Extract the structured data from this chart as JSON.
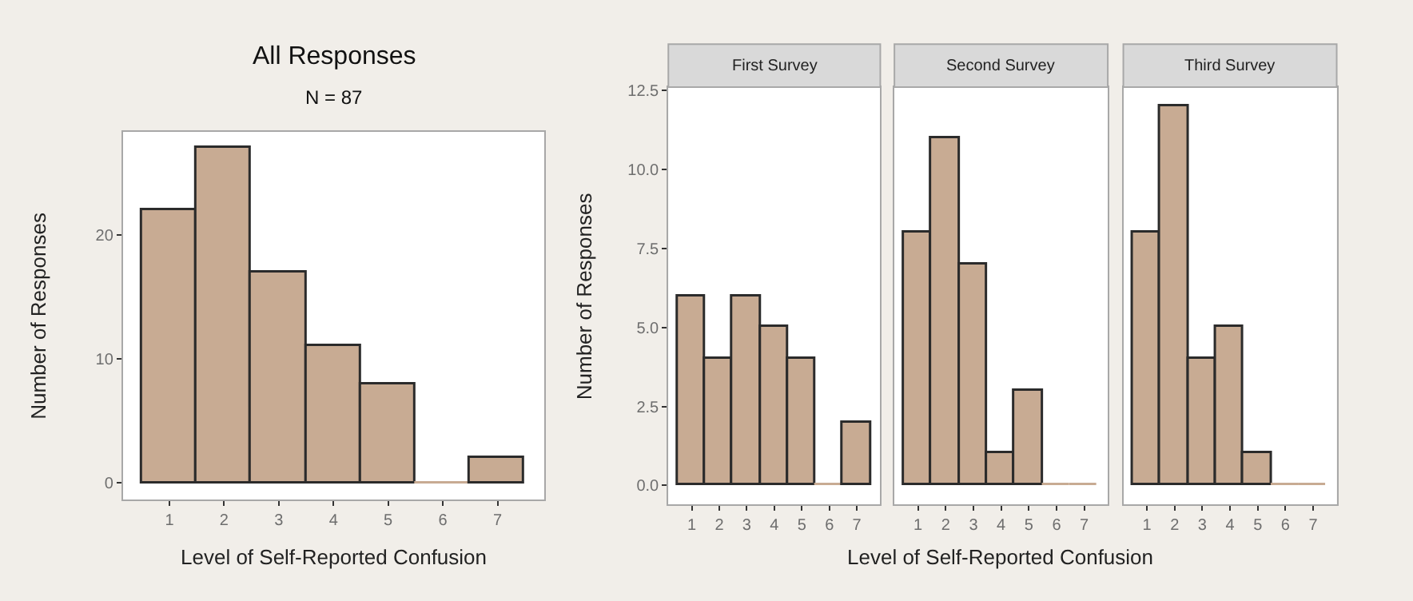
{
  "chart_data": [
    {
      "type": "histogram",
      "title": "All Responses",
      "subtitle": "N = 87",
      "xlabel": "Level of Self-Reported Confusion",
      "ylabel": "Number of Responses",
      "bins": [
        0.5,
        1.5,
        2.5,
        3.5,
        4.5,
        5.5,
        6.5,
        7.5
      ],
      "values": [
        22,
        27,
        17,
        11,
        8,
        0,
        2
      ],
      "color": "#c8ab93",
      "xlim": [
        0.15,
        7.85
      ],
      "xticks": [
        1,
        2,
        3,
        4,
        5,
        6,
        7
      ],
      "ylim": [
        -1.35,
        28.35
      ],
      "yticks": [
        0,
        10,
        20
      ],
      "grid": false
    },
    {
      "type": "histogram",
      "title": "First Survey",
      "ylabel": "Number of Responses",
      "bins": [
        0.5,
        1.5,
        2.5,
        3.5,
        4.5,
        5.5,
        6.5,
        7.5
      ],
      "values": [
        6,
        4,
        6,
        5,
        4,
        0,
        2
      ],
      "color": "#c8ab93",
      "xlim": [
        0.15,
        7.85
      ],
      "xticks": [
        1,
        2,
        3,
        4,
        5,
        6,
        7
      ],
      "ylim": [
        -0.6,
        12.6
      ],
      "yticks": [
        {
          "value": 0,
          "label": "0.0"
        },
        2.5,
        {
          "value": 5,
          "label": "5.0"
        },
        7.5,
        {
          "value": 10,
          "label": "10.0"
        },
        12.5
      ],
      "grid": false
    },
    {
      "type": "histogram",
      "title": "Second Survey",
      "xlabel": "Level of Self-Reported Confusion",
      "bins": [
        0.5,
        1.5,
        2.5,
        3.5,
        4.5,
        5.5,
        6.5,
        7.5
      ],
      "values": [
        8,
        11,
        7,
        1,
        3,
        0,
        0
      ],
      "color": "#c8ab93",
      "xlim": [
        0.15,
        7.85
      ],
      "xticks": [
        1,
        2,
        3,
        4,
        5,
        6,
        7
      ],
      "ylim": [
        -0.6,
        12.6
      ],
      "tick_labels": "x",
      "grid": false
    },
    {
      "type": "histogram",
      "title": "Third Survey",
      "bins": [
        0.5,
        1.5,
        2.5,
        3.5,
        4.5,
        5.5,
        6.5,
        7.5
      ],
      "values": [
        8,
        12,
        4,
        5,
        1,
        0,
        0
      ],
      "color": "#c8ab93",
      "xlim": [
        0.15,
        7.85
      ],
      "xticks": [
        1,
        2,
        3,
        4,
        5,
        6,
        7
      ],
      "ylim": [
        -0.6,
        12.6
      ],
      "tick_labels": "x",
      "grid": false
    }
  ]
}
